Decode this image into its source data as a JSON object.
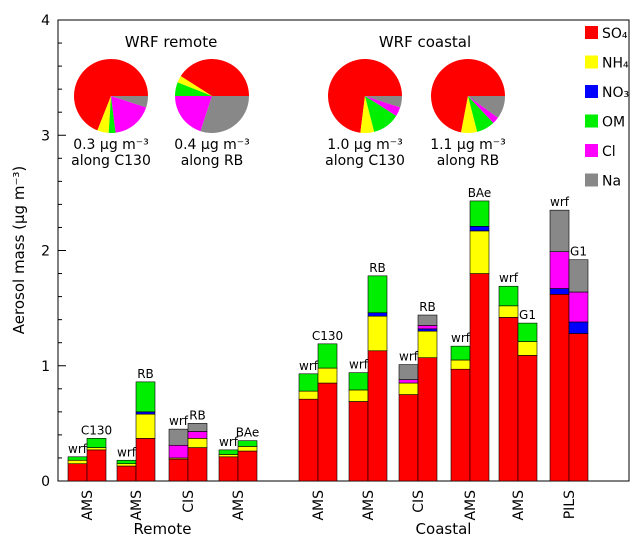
{
  "chart_data": {
    "type": "bar",
    "stacked": true,
    "ylabel": "Aerosol mass (µg m⁻³)",
    "ylim": [
      0,
      4
    ],
    "yticks": [
      0,
      1,
      2,
      3,
      4
    ],
    "components": [
      {
        "key": "SO4",
        "label": "SO₄",
        "color": "#ff0000"
      },
      {
        "key": "NH4",
        "label": "NH₄",
        "color": "#ffff00"
      },
      {
        "key": "NO3",
        "label": "NO₃",
        "color": "#0000ff"
      },
      {
        "key": "OM",
        "label": "OM",
        "color": "#00ee00"
      },
      {
        "key": "Cl",
        "label": "Cl",
        "color": "#ff00ff"
      },
      {
        "key": "Na",
        "label": "Na",
        "color": "#888888"
      }
    ],
    "regions": [
      "Remote",
      "Coastal"
    ],
    "groups": [
      {
        "region": "Remote",
        "instrument": "AMS",
        "bars": [
          {
            "label": "wrf",
            "values": {
              "SO4": 0.15,
              "NH4": 0.03,
              "NO3": 0.0,
              "OM": 0.03,
              "Cl": 0.0,
              "Na": 0.0
            }
          },
          {
            "label": "C130",
            "values": {
              "SO4": 0.27,
              "NH4": 0.02,
              "NO3": 0.0,
              "OM": 0.08,
              "Cl": 0.0,
              "Na": 0.0
            }
          }
        ]
      },
      {
        "region": "Remote",
        "instrument": "AMS",
        "bars": [
          {
            "label": "wrf",
            "values": {
              "SO4": 0.13,
              "NH4": 0.02,
              "NO3": 0.0,
              "OM": 0.03,
              "Cl": 0.0,
              "Na": 0.0
            }
          },
          {
            "label": "RB",
            "values": {
              "SO4": 0.37,
              "NH4": 0.21,
              "NO3": 0.02,
              "OM": 0.26,
              "Cl": 0.0,
              "Na": 0.0
            }
          }
        ]
      },
      {
        "region": "Remote",
        "instrument": "CIS",
        "bars": [
          {
            "label": "wrf",
            "values": {
              "SO4": 0.19,
              "NH4": 0.01,
              "NO3": 0.0,
              "OM": 0.0,
              "Cl": 0.11,
              "Na": 0.14
            }
          },
          {
            "label": "RB",
            "values": {
              "SO4": 0.29,
              "NH4": 0.08,
              "NO3": 0.0,
              "OM": 0.0,
              "Cl": 0.06,
              "Na": 0.07
            }
          }
        ]
      },
      {
        "region": "Remote",
        "instrument": "AMS",
        "bars": [
          {
            "label": "wrf",
            "values": {
              "SO4": 0.21,
              "NH4": 0.02,
              "NO3": 0.0,
              "OM": 0.04,
              "Cl": 0.0,
              "Na": 0.0
            }
          },
          {
            "label": "BAe",
            "values": {
              "SO4": 0.26,
              "NH4": 0.04,
              "NO3": 0.0,
              "OM": 0.05,
              "Cl": 0.0,
              "Na": 0.0
            }
          }
        ]
      },
      {
        "region": "Coastal",
        "instrument": "AMS",
        "bars": [
          {
            "label": "wrf",
            "values": {
              "SO4": 0.71,
              "NH4": 0.07,
              "NO3": 0.0,
              "OM": 0.15,
              "Cl": 0.0,
              "Na": 0.0
            }
          },
          {
            "label": "C130",
            "values": {
              "SO4": 0.85,
              "NH4": 0.13,
              "NO3": 0.0,
              "OM": 0.21,
              "Cl": 0.0,
              "Na": 0.0
            }
          }
        ]
      },
      {
        "region": "Coastal",
        "instrument": "AMS",
        "bars": [
          {
            "label": "wrf",
            "values": {
              "SO4": 0.69,
              "NH4": 0.1,
              "NO3": 0.0,
              "OM": 0.15,
              "Cl": 0.0,
              "Na": 0.0
            }
          },
          {
            "label": "RB",
            "values": {
              "SO4": 1.13,
              "NH4": 0.3,
              "NO3": 0.03,
              "OM": 0.32,
              "Cl": 0.0,
              "Na": 0.0
            }
          }
        ]
      },
      {
        "region": "Coastal",
        "instrument": "CIS",
        "bars": [
          {
            "label": "wrf",
            "values": {
              "SO4": 0.75,
              "NH4": 0.1,
              "NO3": 0.0,
              "OM": 0.0,
              "Cl": 0.03,
              "Na": 0.13
            }
          },
          {
            "label": "RB",
            "values": {
              "SO4": 1.07,
              "NH4": 0.23,
              "NO3": 0.02,
              "OM": 0.0,
              "Cl": 0.03,
              "Na": 0.09
            }
          }
        ]
      },
      {
        "region": "Coastal",
        "instrument": "AMS",
        "bars": [
          {
            "label": "wrf",
            "values": {
              "SO4": 0.97,
              "NH4": 0.08,
              "NO3": 0.0,
              "OM": 0.12,
              "Cl": 0.0,
              "Na": 0.0
            }
          },
          {
            "label": "BAe",
            "values": {
              "SO4": 1.8,
              "NH4": 0.37,
              "NO3": 0.04,
              "OM": 0.22,
              "Cl": 0.0,
              "Na": 0.0
            }
          }
        ]
      },
      {
        "region": "Coastal",
        "instrument": "AMS",
        "bars": [
          {
            "label": "wrf",
            "values": {
              "SO4": 1.42,
              "NH4": 0.1,
              "NO3": 0.0,
              "OM": 0.17,
              "Cl": 0.0,
              "Na": 0.0
            }
          },
          {
            "label": "G1",
            "values": {
              "SO4": 1.09,
              "NH4": 0.12,
              "NO3": 0.0,
              "OM": 0.16,
              "Cl": 0.0,
              "Na": 0.0
            }
          }
        ]
      },
      {
        "region": "Coastal",
        "instrument": "PILS",
        "bars": [
          {
            "label": "wrf",
            "values": {
              "SO4": 1.62,
              "NH4": 0.0,
              "NO3": 0.05,
              "OM": 0.0,
              "Cl": 0.32,
              "Na": 0.36
            }
          },
          {
            "label": "G1",
            "values": {
              "SO4": 1.28,
              "NH4": 0.0,
              "NO3": 0.1,
              "OM": 0.0,
              "Cl": 0.26,
              "Na": 0.28
            }
          }
        ]
      }
    ],
    "insets": [
      {
        "title": "WRF remote",
        "pies": [
          {
            "caption_value": "0.3",
            "caption_unit": "µg m⁻³",
            "caption_along": "along C130",
            "slices": {
              "SO4": 0.69,
              "NH4": 0.05,
              "NO3": 0.0,
              "OM": 0.03,
              "Cl": 0.18,
              "Na": 0.05
            }
          },
          {
            "caption_value": "0.4",
            "caption_unit": "µg m⁻³",
            "caption_along": "along RB",
            "slices": {
              "SO4": 0.41,
              "NH4": 0.03,
              "NO3": 0.0,
              "OM": 0.06,
              "Cl": 0.2,
              "Na": 0.3
            }
          }
        ]
      },
      {
        "title": "WRF coastal",
        "pies": [
          {
            "caption_value": "1.0",
            "caption_unit": "µg m⁻³",
            "caption_along": "along C130",
            "slices": {
              "SO4": 0.73,
              "NH4": 0.06,
              "NO3": 0.0,
              "OM": 0.12,
              "Cl": 0.04,
              "Na": 0.05
            }
          },
          {
            "caption_value": "1.1",
            "caption_unit": "µg m⁻³",
            "caption_along": "along RB",
            "slices": {
              "SO4": 0.72,
              "NH4": 0.07,
              "NO3": 0.0,
              "OM": 0.08,
              "Cl": 0.03,
              "Na": 0.1
            }
          }
        ]
      }
    ]
  }
}
